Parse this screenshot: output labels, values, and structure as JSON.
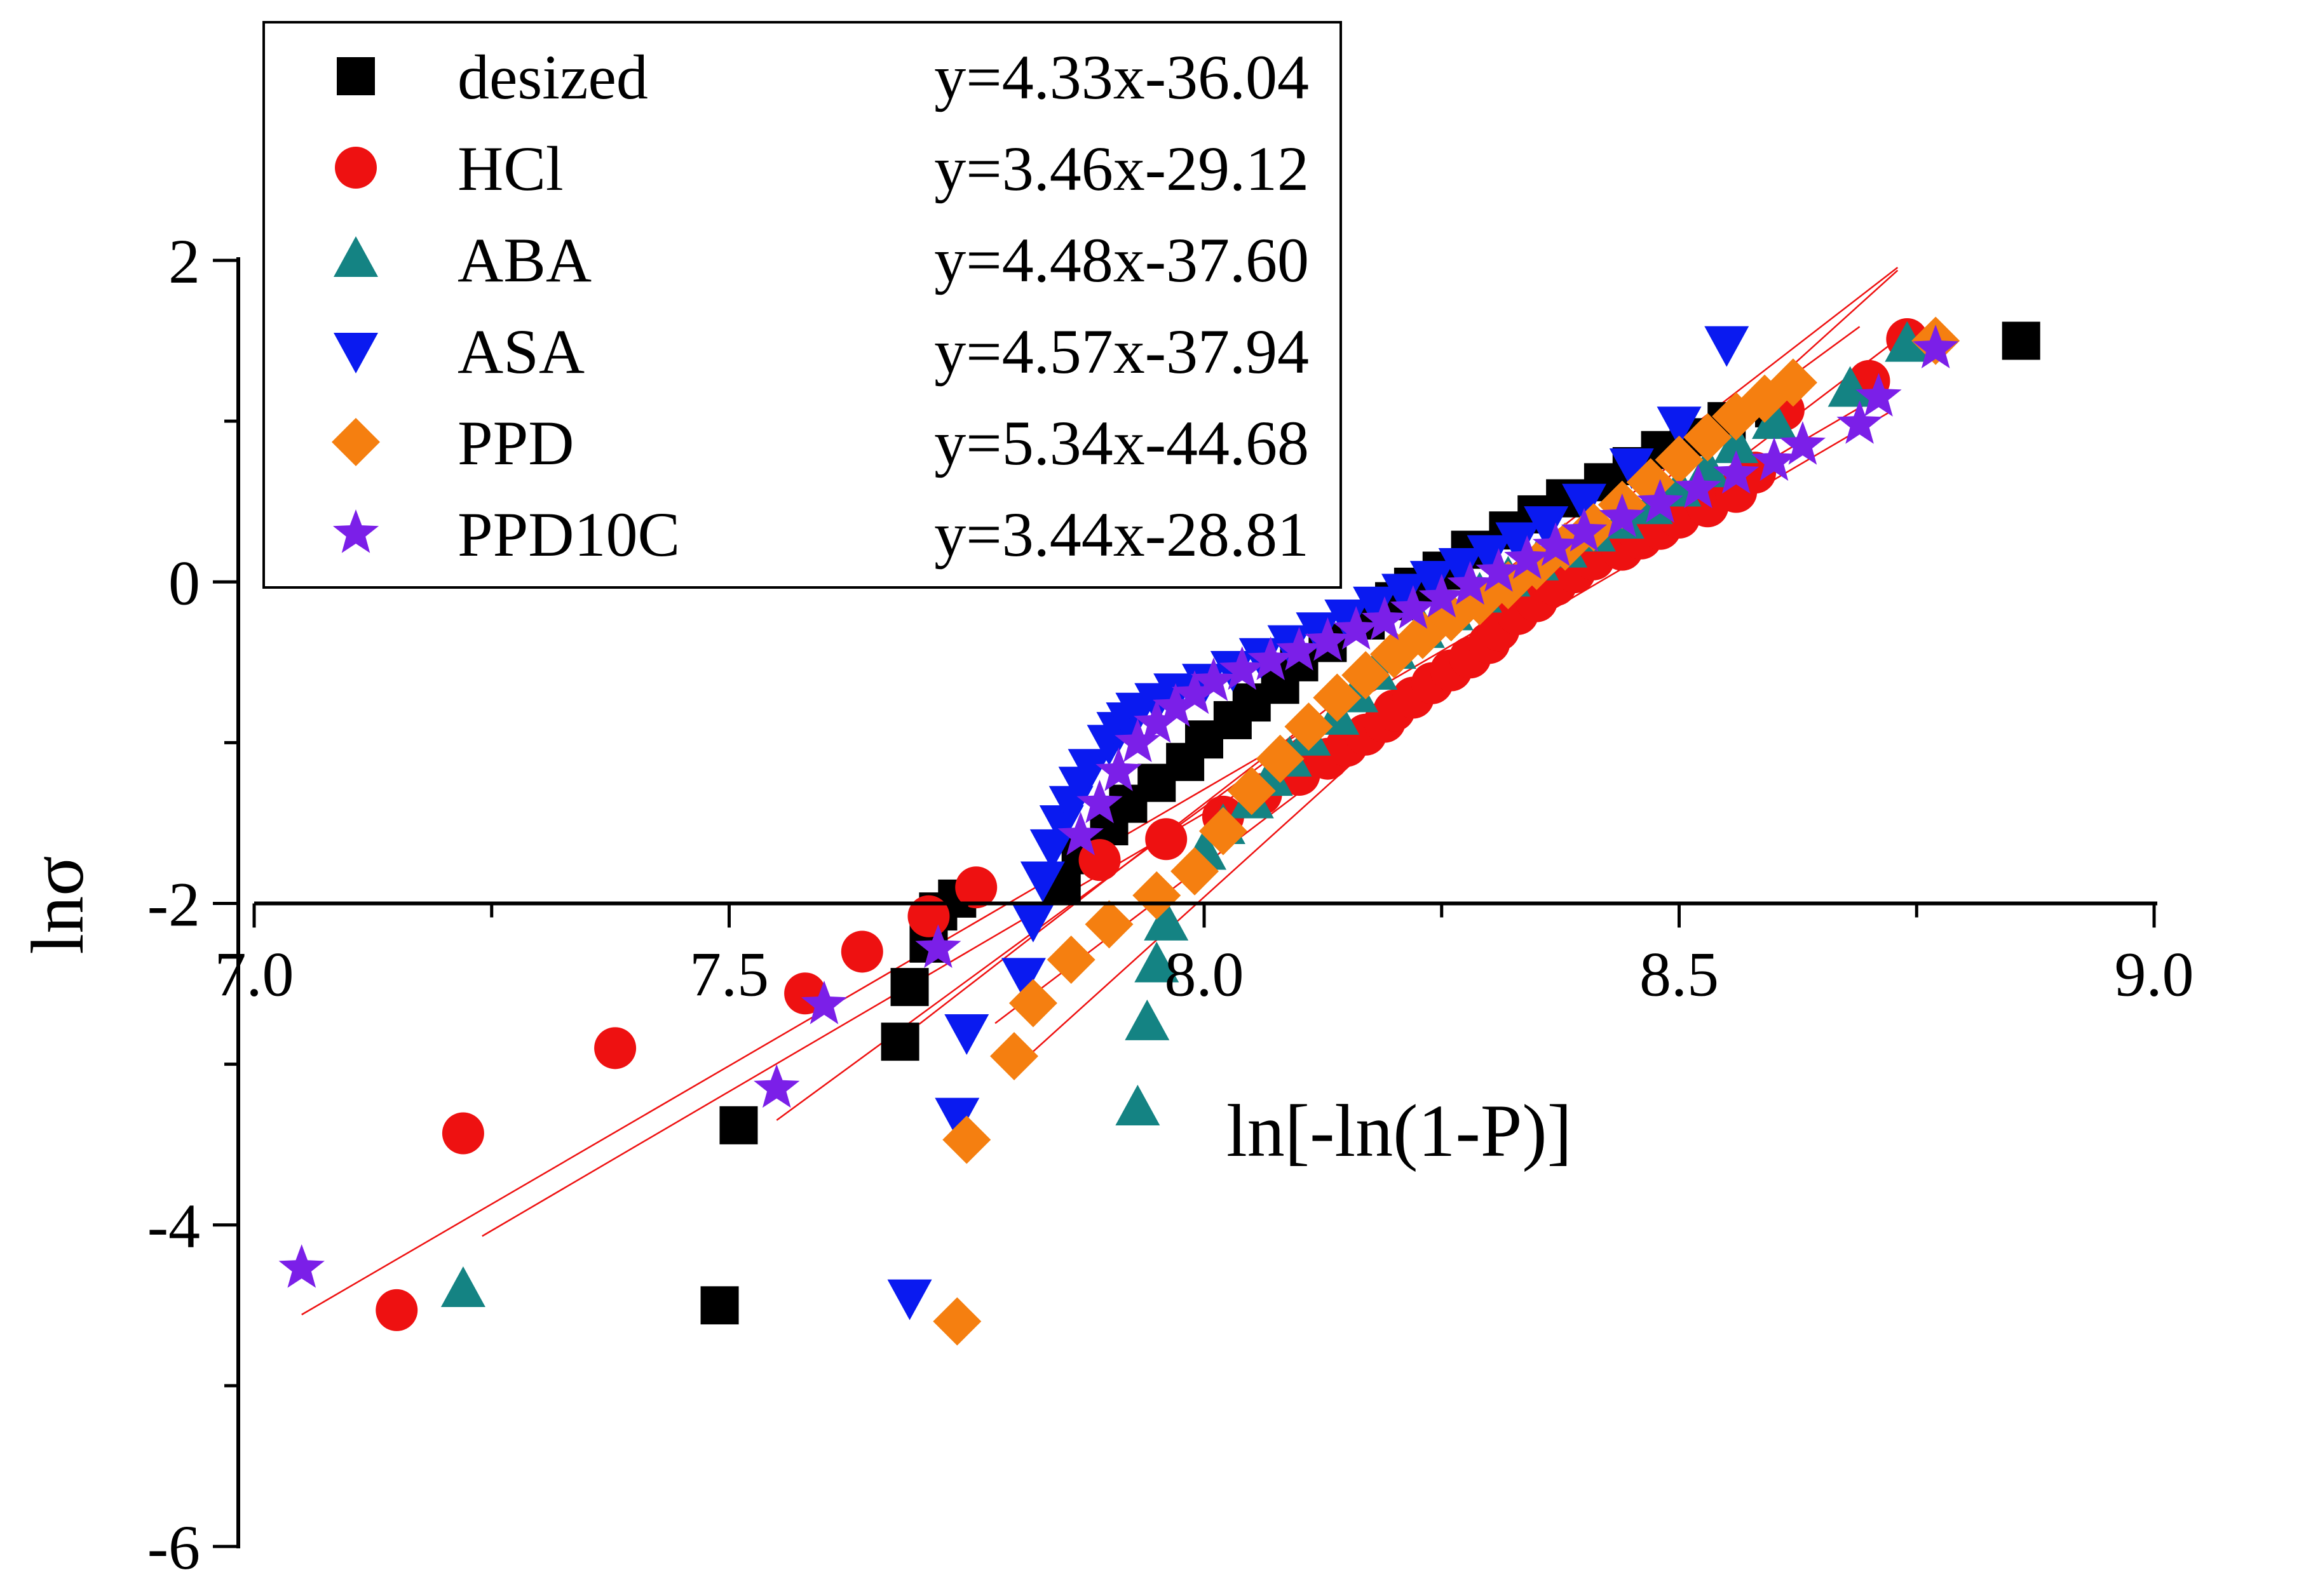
{
  "chart_data": {
    "type": "scatter",
    "title": "",
    "xlabel": "ln[-ln(1-P)]",
    "ylabel": "lnσ",
    "xlim": [
      7.0,
      9.0
    ],
    "ylim": [
      -6,
      2
    ],
    "x_ticks": [
      "7.0",
      "7.5",
      "8.0",
      "8.5",
      "9.0"
    ],
    "y_ticks": [
      "-6",
      "-4",
      "-2",
      "0",
      "2"
    ],
    "legend_position": "top-left",
    "grid": false,
    "series": [
      {
        "name": "desized",
        "equation": "y=4.33x-36.04",
        "slope": 4.33,
        "intercept": -36.04,
        "fit_range": [
          7.55,
          8.69
        ],
        "marker": "square",
        "color": "#000000",
        "x": [
          7.49,
          7.51,
          7.68,
          7.69,
          7.71,
          7.72,
          7.74,
          7.85,
          7.87,
          7.9,
          7.92,
          7.95,
          7.98,
          8.0,
          8.03,
          8.05,
          8.08,
          8.1,
          8.13,
          8.17,
          8.2,
          8.22,
          8.25,
          8.28,
          8.32,
          8.35,
          8.38,
          8.42,
          8.45,
          8.48,
          8.51,
          8.55,
          8.6,
          8.86
        ],
        "y": [
          -4.5,
          -3.38,
          -2.86,
          -2.52,
          -2.25,
          -2.05,
          -1.97,
          -1.87,
          -1.7,
          -1.52,
          -1.38,
          -1.25,
          -1.12,
          -0.98,
          -0.86,
          -0.75,
          -0.64,
          -0.5,
          -0.38,
          -0.24,
          -0.12,
          -0.03,
          0.07,
          0.2,
          0.32,
          0.42,
          0.52,
          0.62,
          0.72,
          0.82,
          0.9,
          1.0,
          1.08,
          1.5
        ]
      },
      {
        "name": "HCl",
        "equation": "y=3.46x-29.12",
        "slope": 3.46,
        "intercept": -29.12,
        "fit_range": [
          7.24,
          8.72
        ],
        "marker": "circle",
        "color": "#ee1111",
        "x": [
          7.15,
          7.22,
          7.38,
          7.58,
          7.64,
          7.71,
          7.76,
          7.89,
          7.96,
          8.02,
          8.06,
          8.1,
          8.13,
          8.15,
          8.17,
          8.19,
          8.2,
          8.22,
          8.24,
          8.26,
          8.28,
          8.3,
          8.31,
          8.33,
          8.35,
          8.37,
          8.39,
          8.41,
          8.44,
          8.46,
          8.48,
          8.5,
          8.53,
          8.56,
          8.58,
          8.61,
          8.7,
          8.74
        ],
        "y": [
          -4.53,
          -3.43,
          -2.9,
          -2.56,
          -2.3,
          -2.08,
          -1.9,
          -1.73,
          -1.6,
          -1.46,
          -1.32,
          -1.2,
          -1.1,
          -1.02,
          -0.95,
          -0.87,
          -0.8,
          -0.72,
          -0.63,
          -0.55,
          -0.47,
          -0.38,
          -0.3,
          -0.2,
          -0.12,
          -0.02,
          0.06,
          0.14,
          0.2,
          0.27,
          0.33,
          0.4,
          0.47,
          0.56,
          0.68,
          1.07,
          1.25,
          1.51
        ]
      },
      {
        "name": "ABA",
        "equation": "y=4.48x-37.60",
        "slope": 4.48,
        "intercept": -37.6,
        "fit_range": [
          7.78,
          8.73
        ],
        "marker": "triangle-up",
        "color": "#148383",
        "x": [
          7.22,
          7.93,
          7.94,
          7.95,
          7.96,
          8.0,
          8.02,
          8.05,
          8.07,
          8.09,
          8.11,
          8.14,
          8.16,
          8.18,
          8.2,
          8.23,
          8.26,
          8.29,
          8.32,
          8.35,
          8.38,
          8.41,
          8.44,
          8.47,
          8.5,
          8.53,
          8.56,
          8.6,
          8.68,
          8.74
        ],
        "y": [
          -4.4,
          -3.27,
          -2.74,
          -2.38,
          -2.12,
          -1.68,
          -1.52,
          -1.36,
          -1.22,
          -1.1,
          -0.97,
          -0.84,
          -0.7,
          -0.56,
          -0.43,
          -0.3,
          -0.19,
          -0.08,
          0.02,
          0.12,
          0.2,
          0.3,
          0.38,
          0.47,
          0.58,
          0.7,
          0.85,
          1.0,
          1.2,
          1.48
        ]
      },
      {
        "name": "ASA",
        "equation": "y=4.57x-37.94",
        "slope": 4.57,
        "intercept": -37.94,
        "fit_range": [
          7.7,
          8.73
        ],
        "marker": "triangle-down",
        "color": "#0a1af0",
        "x": [
          7.69,
          7.74,
          7.75,
          7.81,
          7.82,
          7.83,
          7.84,
          7.85,
          7.86,
          7.87,
          7.88,
          7.9,
          7.91,
          7.92,
          7.93,
          7.95,
          7.97,
          8.0,
          8.03,
          8.06,
          8.09,
          8.12,
          8.15,
          8.18,
          8.21,
          8.24,
          8.27,
          8.3,
          8.33,
          8.36,
          8.4,
          8.45,
          8.5,
          8.55
        ],
        "y": [
          -4.45,
          -3.32,
          -2.8,
          -2.45,
          -2.1,
          -1.85,
          -1.65,
          -1.5,
          -1.38,
          -1.26,
          -1.15,
          -1.0,
          -0.92,
          -0.86,
          -0.8,
          -0.74,
          -0.68,
          -0.62,
          -0.54,
          -0.46,
          -0.38,
          -0.3,
          -0.22,
          -0.14,
          -0.06,
          0.02,
          0.1,
          0.18,
          0.26,
          0.36,
          0.5,
          0.72,
          0.98,
          1.48
        ]
      },
      {
        "name": "PPD",
        "equation": "y=5.34x-44.68",
        "slope": 5.34,
        "intercept": -44.68,
        "fit_range": [
          7.8,
          8.73
        ],
        "marker": "diamond",
        "color": "#f57f10",
        "x": [
          7.74,
          7.75,
          7.8,
          7.82,
          7.86,
          7.9,
          7.95,
          7.99,
          8.02,
          8.05,
          8.08,
          8.11,
          8.14,
          8.17,
          8.2,
          8.23,
          8.26,
          8.29,
          8.32,
          8.35,
          8.38,
          8.41,
          8.44,
          8.47,
          8.5,
          8.53,
          8.56,
          8.59,
          8.62,
          8.77
        ],
        "y": [
          -4.6,
          -3.47,
          -2.95,
          -2.62,
          -2.35,
          -2.13,
          -1.95,
          -1.8,
          -1.55,
          -1.3,
          -1.1,
          -0.9,
          -0.72,
          -0.58,
          -0.45,
          -0.33,
          -0.22,
          -0.12,
          -0.02,
          0.1,
          0.22,
          0.34,
          0.48,
          0.62,
          0.76,
          0.9,
          1.03,
          1.14,
          1.24,
          1.5
        ]
      },
      {
        "name": "PPD10C",
        "equation": "y=3.44x-28.81",
        "slope": 3.44,
        "intercept": -28.81,
        "fit_range": [
          7.05,
          8.71
        ],
        "marker": "star",
        "color": "#7b1fe8",
        "x": [
          7.05,
          7.55,
          7.6,
          7.72,
          7.87,
          7.89,
          7.91,
          7.93,
          7.95,
          7.97,
          7.99,
          8.01,
          8.04,
          8.07,
          8.1,
          8.13,
          8.16,
          8.19,
          8.22,
          8.25,
          8.28,
          8.31,
          8.34,
          8.37,
          8.4,
          8.44,
          8.48,
          8.52,
          8.56,
          8.6,
          8.63,
          8.69,
          8.71,
          8.77
        ],
        "y": [
          -4.27,
          -3.15,
          -2.63,
          -2.28,
          -1.58,
          -1.38,
          -1.18,
          -1.0,
          -0.88,
          -0.78,
          -0.7,
          -0.62,
          -0.55,
          -0.49,
          -0.43,
          -0.37,
          -0.3,
          -0.24,
          -0.17,
          -0.1,
          -0.02,
          0.06,
          0.14,
          0.22,
          0.31,
          0.4,
          0.49,
          0.58,
          0.67,
          0.75,
          0.85,
          0.98,
          1.15,
          1.45
        ]
      }
    ]
  }
}
